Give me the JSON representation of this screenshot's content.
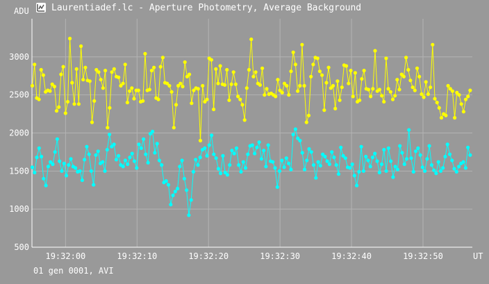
{
  "window": {
    "title": "Laurentiadef.lc - Aperture Photometry, Average Background",
    "icon": "chart-app-icon"
  },
  "footer": {
    "text": "01 gen 0001, AVI"
  },
  "chart_data": {
    "type": "line",
    "ylabel": "ADU",
    "xlabel": "UT",
    "ylim": [
      500,
      3500
    ],
    "y_ticks": [
      500,
      1000,
      1500,
      2000,
      2500,
      3000
    ],
    "x_range_seconds": [
      -4.7,
      56.9
    ],
    "x_ticks": [
      {
        "t": 0,
        "label": "19:32:00"
      },
      {
        "t": 10,
        "label": "19:32:10"
      },
      {
        "t": 20,
        "label": "19:32:20"
      },
      {
        "t": 30,
        "label": "19:32:30"
      },
      {
        "t": 40,
        "label": "19:32:40"
      },
      {
        "t": 50,
        "label": "19:32:50"
      }
    ],
    "grid": true,
    "series": [
      {
        "color": "#ffff00",
        "values": [
          2620,
          2900,
          2460,
          2440,
          2830,
          2760,
          2540,
          2560,
          2550,
          2640,
          2610,
          2290,
          2340,
          2770,
          2870,
          2260,
          2410,
          3240,
          2660,
          2380,
          2840,
          2380,
          3140,
          2700,
          2860,
          2690,
          2680,
          2140,
          2420,
          2830,
          2800,
          2700,
          2590,
          2820,
          2070,
          2330,
          2800,
          2840,
          2740,
          2730,
          2620,
          2650,
          2900,
          2400,
          2550,
          2590,
          2450,
          2560,
          2560,
          2410,
          2420,
          3040,
          2560,
          2570,
          2820,
          2860,
          2460,
          2440,
          2870,
          2990,
          2660,
          2650,
          2620,
          2540,
          2070,
          2370,
          2620,
          2650,
          2610,
          2930,
          2740,
          2770,
          2390,
          2560,
          2590,
          2580,
          1900,
          2620,
          2410,
          2440,
          2980,
          2960,
          2310,
          2840,
          2650,
          2880,
          2640,
          2630,
          2830,
          2430,
          2640,
          2800,
          2640,
          2480,
          2440,
          2370,
          2170,
          2590,
          2830,
          3230,
          2740,
          2800,
          2650,
          2630,
          2850,
          2500,
          2580,
          2510,
          2520,
          2500,
          2480,
          2700,
          2560,
          2530,
          2650,
          2620,
          2500,
          2810,
          3060,
          2900,
          2550,
          2620,
          3160,
          2620,
          2140,
          2230,
          2740,
          2900,
          2990,
          2980,
          2810,
          2760,
          2300,
          2660,
          2860,
          2590,
          2620,
          2320,
          2680,
          2430,
          2600,
          2890,
          2880,
          2650,
          2820,
          2480,
          2790,
          2410,
          2430,
          2710,
          2820,
          2580,
          2570,
          2480,
          2580,
          3080,
          2550,
          2570,
          2490,
          2410,
          2980,
          2580,
          2540,
          2440,
          2490,
          2700,
          2570,
          2770,
          2740,
          2990,
          2830,
          2690,
          2600,
          2560,
          2850,
          2740,
          2510,
          2470,
          2670,
          2510,
          2600,
          3160,
          2450,
          2400,
          2330,
          2200,
          2250,
          2230,
          2620,
          2580,
          2550,
          2200,
          2530,
          2500,
          2380,
          2280,
          2440,
          2480,
          2560
        ]
      },
      {
        "color": "#00ffff",
        "values": [
          1550,
          1480,
          1680,
          1800,
          1690,
          1400,
          1310,
          1560,
          1620,
          1590,
          1750,
          1920,
          1630,
          1500,
          1600,
          1440,
          1580,
          1660,
          1560,
          1540,
          1490,
          1500,
          1380,
          1650,
          1820,
          1720,
          1500,
          1320,
          1710,
          1760,
          1600,
          1620,
          1500,
          1780,
          1980,
          1820,
          1850,
          1650,
          1700,
          1580,
          1560,
          1640,
          1590,
          1680,
          1730,
          1630,
          1540,
          1850,
          1800,
          1920,
          1720,
          1610,
          1990,
          2020,
          1740,
          1860,
          1640,
          1580,
          1350,
          1370,
          1320,
          1060,
          1180,
          1230,
          1270,
          1560,
          1640,
          1400,
          1250,
          920,
          1120,
          1490,
          1650,
          1580,
          1680,
          1780,
          1800,
          1700,
          1840,
          1970,
          1720,
          1670,
          1530,
          1470,
          1700,
          1480,
          1450,
          1580,
          1770,
          1730,
          1800,
          1580,
          1490,
          1620,
          1540,
          1720,
          1830,
          1840,
          1730,
          1810,
          1880,
          1660,
          1770,
          1560,
          1840,
          1630,
          1620,
          1540,
          1290,
          1500,
          1640,
          1550,
          1670,
          1600,
          1520,
          1980,
          2050,
          1930,
          1900,
          1740,
          1520,
          1640,
          1790,
          1750,
          1580,
          1410,
          1620,
          1570,
          1720,
          1690,
          1630,
          1590,
          1750,
          1680,
          1580,
          1460,
          1810,
          1700,
          1670,
          1550,
          1540,
          1590,
          1440,
          1310,
          1490,
          1820,
          1500,
          1690,
          1640,
          1560,
          1680,
          1730,
          1630,
          1480,
          1590,
          1780,
          1500,
          1800,
          1630,
          1420,
          1560,
          1520,
          1830,
          1740,
          1590,
          1660,
          2040,
          1670,
          1490,
          1760,
          1800,
          1710,
          1550,
          1500,
          1660,
          1830,
          1580,
          1510,
          1470,
          1620,
          1500,
          1540,
          1690,
          1850,
          1720,
          1640,
          1530,
          1490,
          1560,
          1600,
          1620,
          1540,
          1810,
          1710
        ]
      }
    ]
  }
}
